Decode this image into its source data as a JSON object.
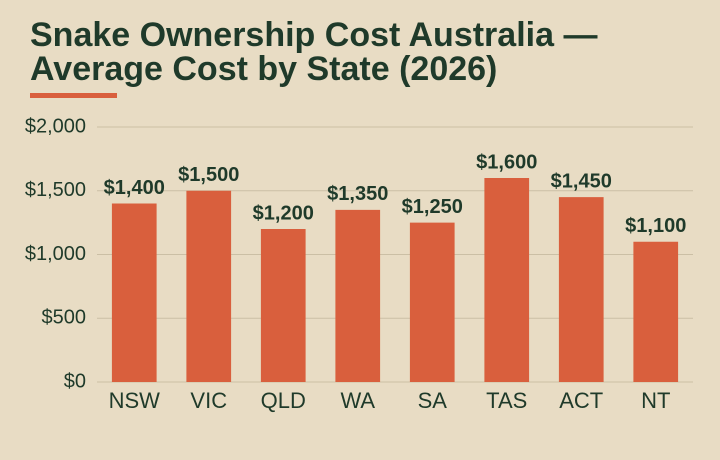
{
  "chart_data": {
    "type": "bar",
    "title": "Snake Ownership Cost Australia — Average Cost by State (2026)",
    "categories": [
      "NSW",
      "VIC",
      "QLD",
      "WA",
      "SA",
      "TAS",
      "ACT",
      "NT"
    ],
    "values": [
      1400,
      1500,
      1200,
      1350,
      1250,
      1600,
      1450,
      1100
    ],
    "value_labels": [
      "$1,400",
      "$1,500",
      "$1,200",
      "$1,350",
      "$1,250",
      "$1,600",
      "$1,450",
      "$1,100"
    ],
    "color": "#d95f3d",
    "ylim": [
      0,
      2000
    ],
    "yticks": [
      {
        "value": 0,
        "label": "$0"
      },
      {
        "value": 500,
        "label": "$500"
      },
      {
        "value": 1000,
        "label": "$1,000"
      },
      {
        "value": 1500,
        "label": "$1,500"
      },
      {
        "value": 2000,
        "label": "$2,000"
      }
    ],
    "grid": true
  }
}
